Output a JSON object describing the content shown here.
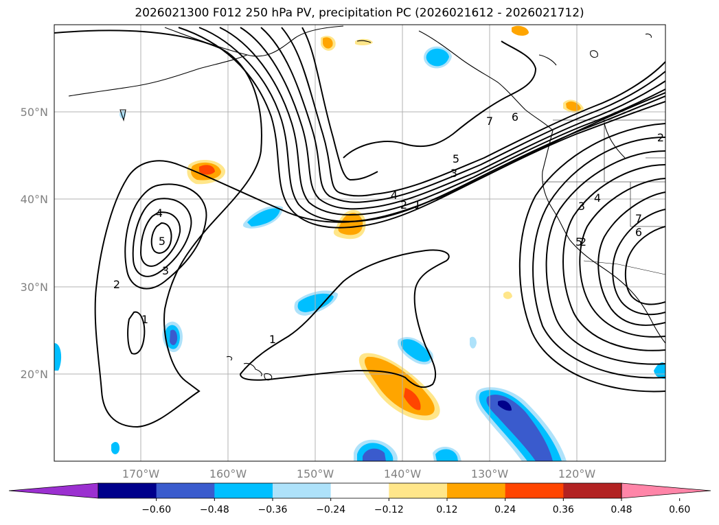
{
  "title": "2026021300 F012 250 hPa PV, precipitation PC (2026021612 - 2026021712)",
  "lat_labels": [
    "50°N",
    "40°N",
    "30°N",
    "20°N"
  ],
  "lon_labels": [
    "170°W",
    "160°W",
    "150°W",
    "140°W",
    "130°W",
    "120°W"
  ],
  "colorbar": {
    "tick_labels": [
      "−0.60",
      "−0.48",
      "−0.36",
      "−0.24",
      "−0.12",
      "0.12",
      "0.24",
      "0.36",
      "0.48",
      "0.60"
    ],
    "colors": [
      "#9b30d0",
      "#00008b",
      "#3a5bcd",
      "#00bfff",
      "#aee2fa",
      "#ffffff",
      "#ffe68a",
      "#ffa500",
      "#ff4500",
      "#b22222",
      "#ff85a8"
    ]
  },
  "contour_labels": [
    "1",
    "2",
    "3",
    "4",
    "5",
    "6",
    "7",
    "1",
    "2",
    "3",
    "4",
    "5",
    "1",
    "2",
    "3",
    "4",
    "5",
    "6",
    "7",
    "2"
  ]
}
